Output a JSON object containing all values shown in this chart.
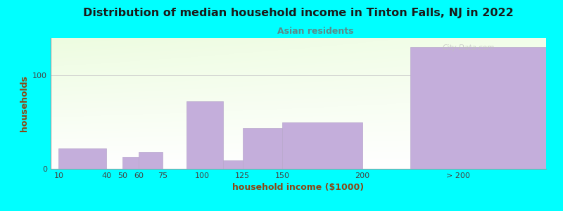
{
  "title": "Distribution of median household income in Tinton Falls, NJ in 2022",
  "subtitle": "Asian residents",
  "xlabel": "household income ($1000)",
  "ylabel": "households",
  "background_color": "#00FFFF",
  "bar_color": "#C4AEDB",
  "bar_edge_color": "#b8a8cc",
  "title_color": "#1a1a1a",
  "subtitle_color": "#5a8a8a",
  "axis_label_color": "#8B4513",
  "tick_label_color": "#444444",
  "categories": [
    "10",
    "40",
    "50",
    "60",
    "75",
    "100",
    "125",
    "150",
    "200",
    "> 200"
  ],
  "values": [
    22,
    0,
    13,
    18,
    0,
    72,
    9,
    44,
    50,
    130
  ],
  "xlim_left": 5,
  "xlim_right": 315,
  "ylim": [
    0,
    140
  ],
  "yticks": [
    0,
    100
  ],
  "watermark": "City-Data.com",
  "title_fontsize": 11.5,
  "subtitle_fontsize": 9,
  "label_fontsize": 9,
  "tick_fontsize": 8
}
